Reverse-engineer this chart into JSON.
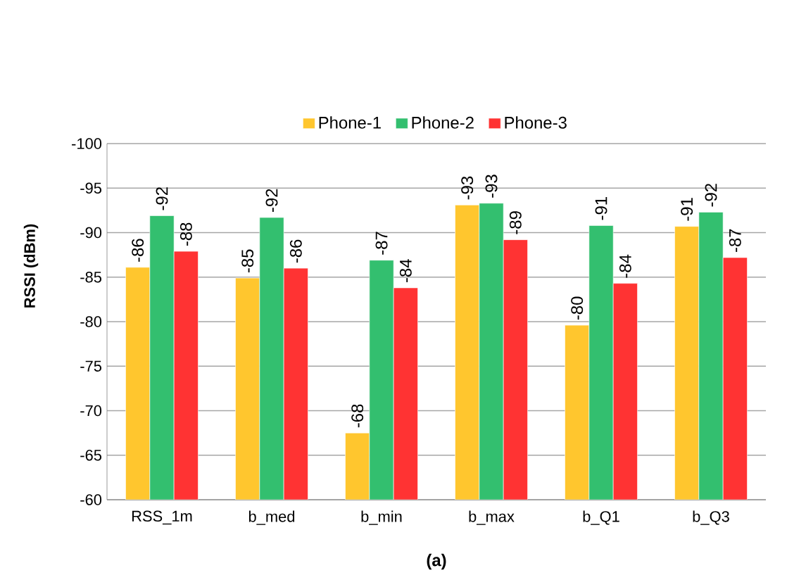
{
  "chart_data": {
    "type": "bar",
    "title": "(a)",
    "ylabel": "RSSI (dBm)",
    "categories": [
      "RSS_1m",
      "b_med",
      "b_min",
      "b_max",
      "b_Q1",
      "b_Q3"
    ],
    "series": [
      {
        "name": "Phone-1",
        "color": "#ffc62e",
        "values": [
          -86.1,
          -84.9,
          -67.5,
          -93.1,
          -79.6,
          -90.7
        ],
        "value_labels": [
          "-86",
          "-85",
          "-68",
          "-93",
          "-80",
          "-91"
        ]
      },
      {
        "name": "Phone-2",
        "color": "#33bf6f",
        "values": [
          -91.9,
          -91.7,
          -86.9,
          -93.3,
          -90.8,
          -92.3
        ],
        "value_labels": [
          "-92",
          "-92",
          "-87",
          "-93",
          "-91",
          "-92"
        ]
      },
      {
        "name": "Phone-3",
        "color": "#ff3333",
        "values": [
          -87.9,
          -86.0,
          -83.8,
          -89.2,
          -84.3,
          -87.2
        ],
        "value_labels": [
          "-88",
          "-86",
          "-84",
          "-89",
          "-84",
          "-87"
        ]
      }
    ],
    "ylim": [
      -60,
      -100
    ],
    "yticks": [
      -100,
      -95,
      -90,
      -85,
      -80,
      -75,
      -70,
      -65,
      -60
    ],
    "grid": "y",
    "legend": "top"
  }
}
